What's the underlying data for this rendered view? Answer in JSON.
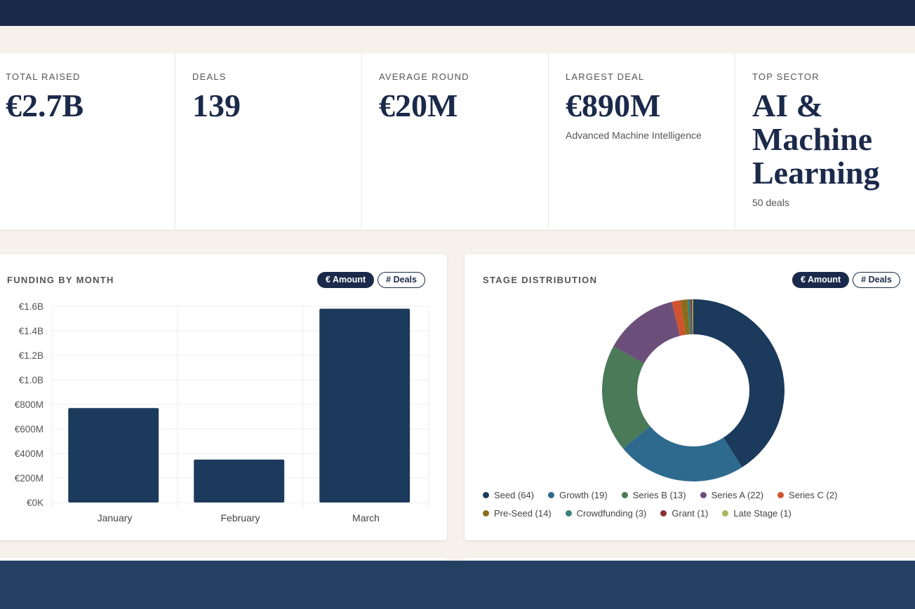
{
  "kpis": [
    {
      "label": "Total Raised",
      "value": "€2.7B",
      "sub": ""
    },
    {
      "label": "Deals",
      "value": "139",
      "sub": ""
    },
    {
      "label": "Average Round",
      "value": "€20M",
      "sub": ""
    },
    {
      "label": "Largest Deal",
      "value": "€890M",
      "sub": "Advanced Machine Intelligence"
    },
    {
      "label": "Top Sector",
      "value": "AI & Machine Learning",
      "sub": "50 deals"
    }
  ],
  "funding": {
    "title": "FUNDING BY MONTH",
    "toggle_amount": "€ Amount",
    "toggle_deals": "# Deals"
  },
  "stage": {
    "title": "STAGE DISTRIBUTION",
    "toggle_amount": "€ Amount",
    "toggle_deals": "# Deals"
  },
  "chart_data": [
    {
      "type": "bar",
      "categories": [
        "January",
        "February",
        "March"
      ],
      "values": [
        0.77,
        0.35,
        1.58
      ],
      "unit": "€B",
      "ylim": [
        0,
        1.6
      ],
      "yticks": [
        "€0K",
        "€200M",
        "€400M",
        "€600M",
        "€800M",
        "€1.0B",
        "€1.2B",
        "€1.4B",
        "€1.6B"
      ],
      "grid": true,
      "color": "#1b3a5c"
    },
    {
      "type": "pie",
      "donut": true,
      "legend": "bottom",
      "slices": [
        {
          "label": "Seed (64)",
          "share": 41,
          "color": "#1b3a5c"
        },
        {
          "label": "Growth (19)",
          "share": 23,
          "color": "#2e6a8e"
        },
        {
          "label": "Series B (13)",
          "share": 19,
          "color": "#4a7a57"
        },
        {
          "label": "Series A (22)",
          "share": 13.2,
          "color": "#6b4f7a"
        },
        {
          "label": "Series C (2)",
          "share": 1.6,
          "color": "#d0532e"
        },
        {
          "label": "Pre-Seed (14)",
          "share": 1.2,
          "color": "#8a6d1a"
        },
        {
          "label": "Crowdfunding (3)",
          "share": 0.5,
          "color": "#3a8080"
        },
        {
          "label": "Grant (1)",
          "share": 0.3,
          "color": "#8b3030"
        },
        {
          "label": "Late Stage (1)",
          "share": 0.2,
          "color": "#a8b860"
        }
      ]
    }
  ]
}
